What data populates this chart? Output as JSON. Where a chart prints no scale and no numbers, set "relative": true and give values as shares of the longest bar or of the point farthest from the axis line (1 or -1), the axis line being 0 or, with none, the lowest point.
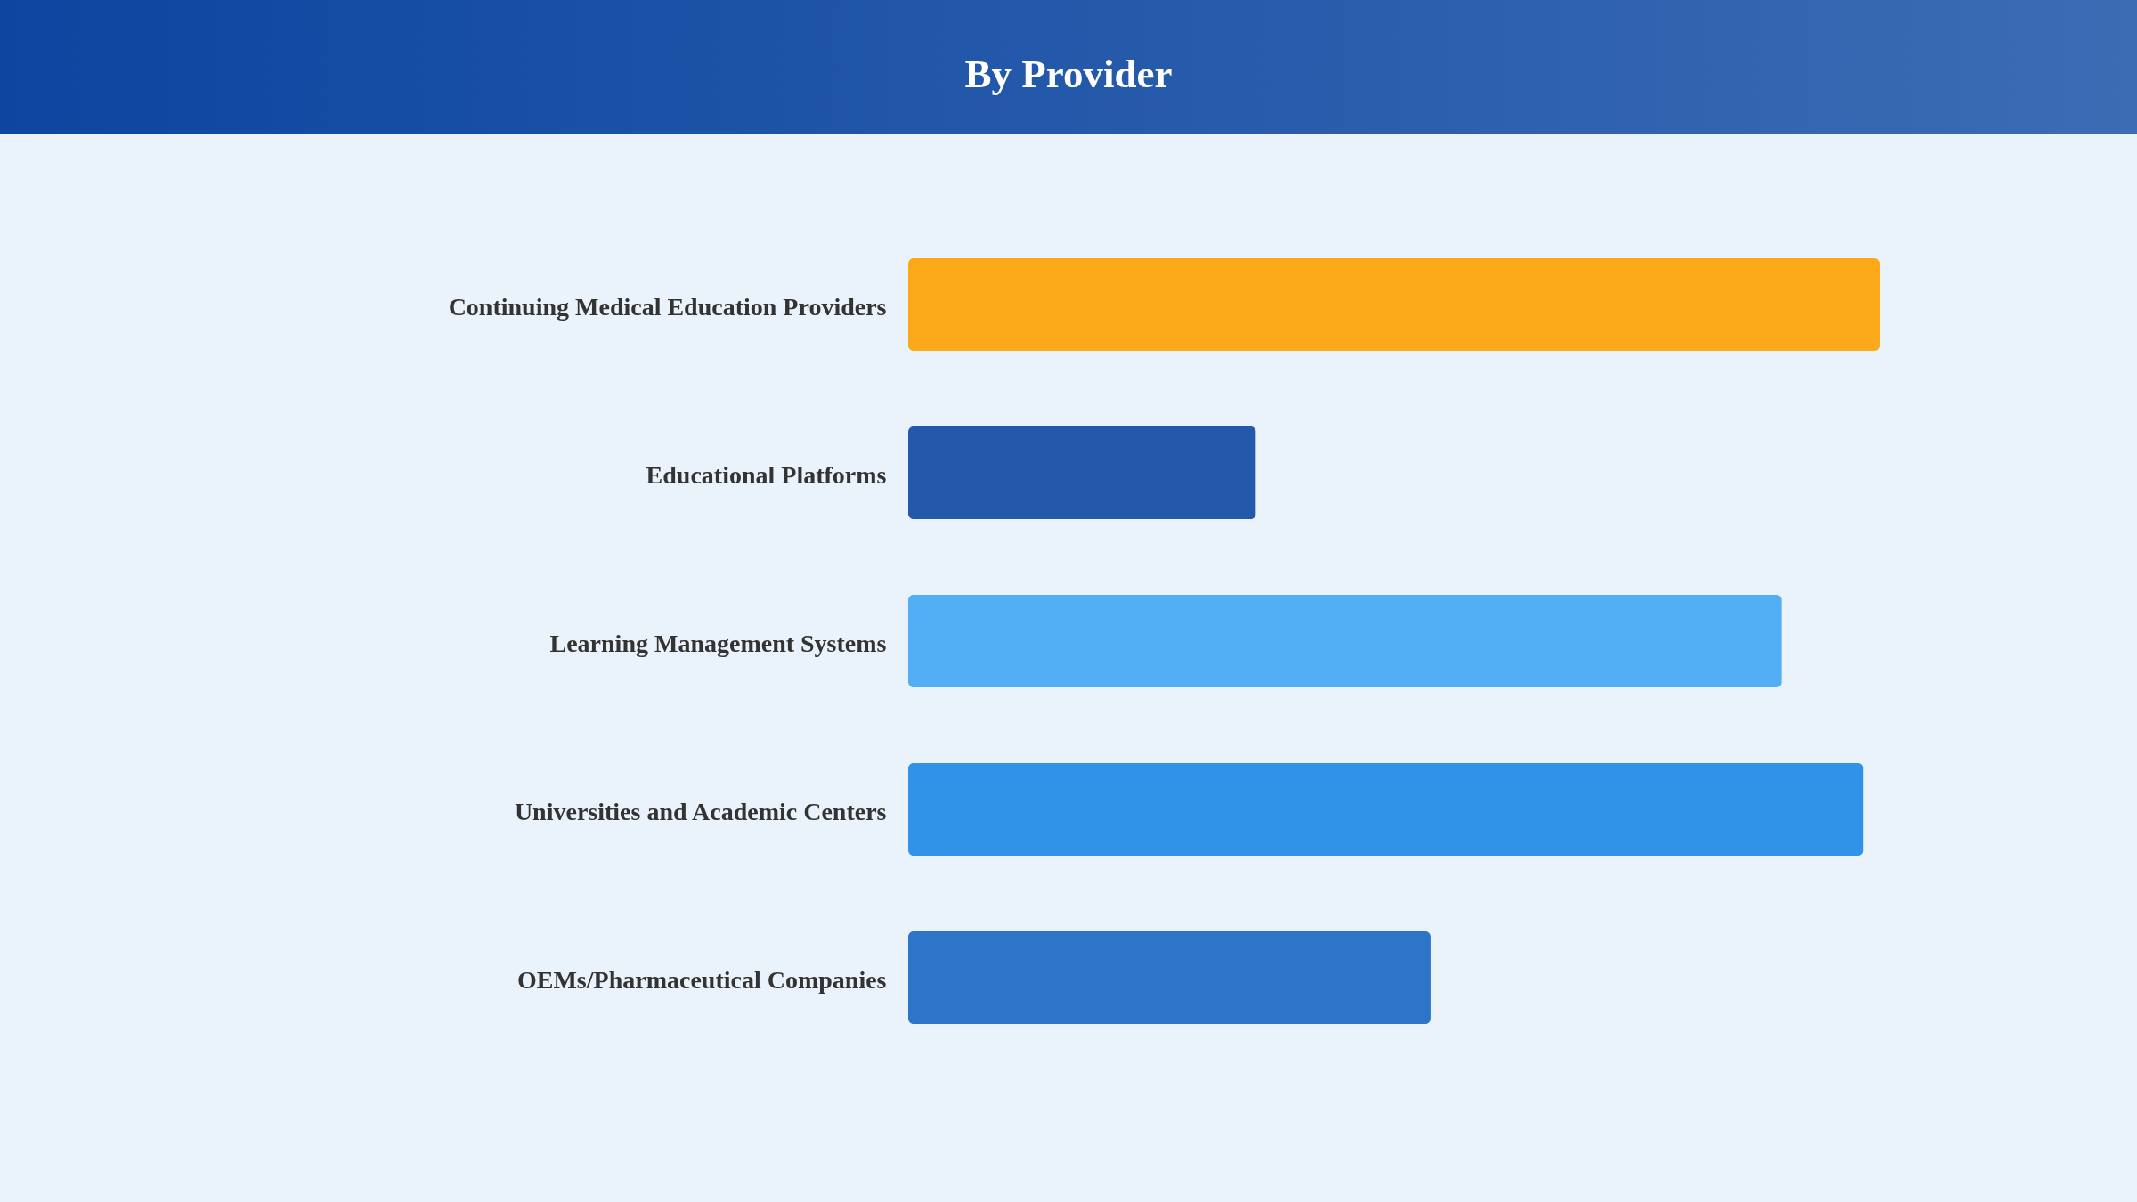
{
  "chart_data": {
    "type": "bar",
    "title": "By Provider",
    "orientation": "horizontal",
    "relative": true,
    "categories": [
      "Continuing Medical Education Providers",
      "Educational Platforms",
      "Learning Management Systems",
      "Universities and Academic Centers",
      "OEMs/Pharmaceutical Companies"
    ],
    "values": [
      1,
      0.358,
      0.899,
      0.983,
      0.538
    ],
    "colors": [
      "#fba919",
      "#2358ab",
      "#52aef5",
      "#3193e8",
      "#2c75c8"
    ]
  }
}
